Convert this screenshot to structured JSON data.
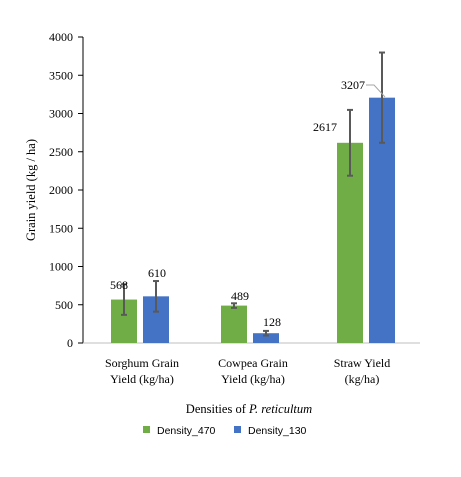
{
  "chart_data": {
    "type": "bar",
    "categories": [
      [
        "Sorghum Grain",
        "Yield (kg/ha)"
      ],
      [
        "Cowpea Grain",
        "Yield (kg/ha)"
      ],
      [
        "Straw Yield",
        "(kg/ha)"
      ]
    ],
    "series": [
      {
        "name": "Density_470",
        "color": "#70ad47",
        "values": [
          568,
          489,
          2617
        ],
        "errors": [
          200,
          30,
          430
        ],
        "labels": [
          "568",
          "489",
          "2617"
        ]
      },
      {
        "name": "Density_130",
        "color": "#4472c4",
        "values": [
          610,
          128,
          3207
        ],
        "errors": [
          200,
          30,
          590
        ],
        "labels": [
          "610",
          "128",
          "3207"
        ]
      }
    ],
    "ylabel": "Grain yield (kg / ha)",
    "xlabel_prefix": "Densities of ",
    "xlabel_italic": "P. reticultum",
    "ylim": [
      0,
      4000
    ],
    "yticks": [
      0,
      500,
      1000,
      1500,
      2000,
      2500,
      3000,
      3500,
      4000
    ],
    "legend_position": "bottom",
    "grid": false,
    "error_bar_color": "#595959"
  }
}
